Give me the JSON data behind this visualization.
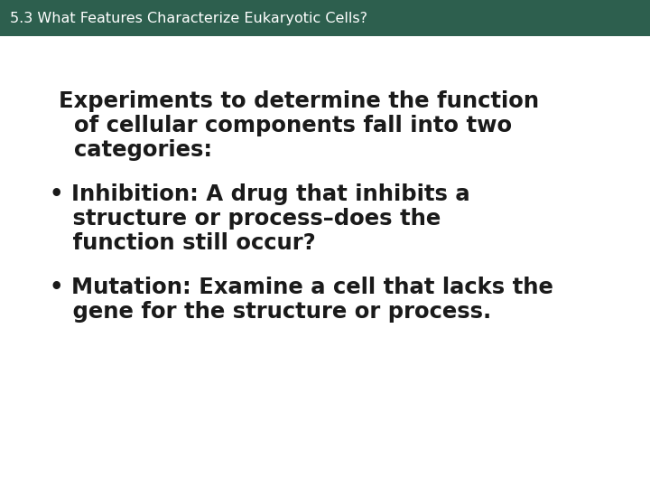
{
  "header_text": "5.3 What Features Characterize Eukaryotic Cells?",
  "header_bg_color": "#2d5f4e",
  "header_text_color": "#ffffff",
  "body_bg_color": "#ffffff",
  "body_text_color": "#1a1a1a",
  "header_font_size": 11.5,
  "body_font_size": 17.5,
  "intro_line1": "Experiments to determine the function",
  "intro_line2": "  of cellular components fall into two",
  "intro_line3": "  categories:",
  "bullet1_line1": "• Inhibition: A drug that inhibits a",
  "bullet1_line2": "   structure or process–does the",
  "bullet1_line3": "   function still occur?",
  "bullet2_line1": "• Mutation: Examine a cell that lacks the",
  "bullet2_line2": "   gene for the structure or process.",
  "fig_width": 7.2,
  "fig_height": 5.4,
  "dpi": 100
}
